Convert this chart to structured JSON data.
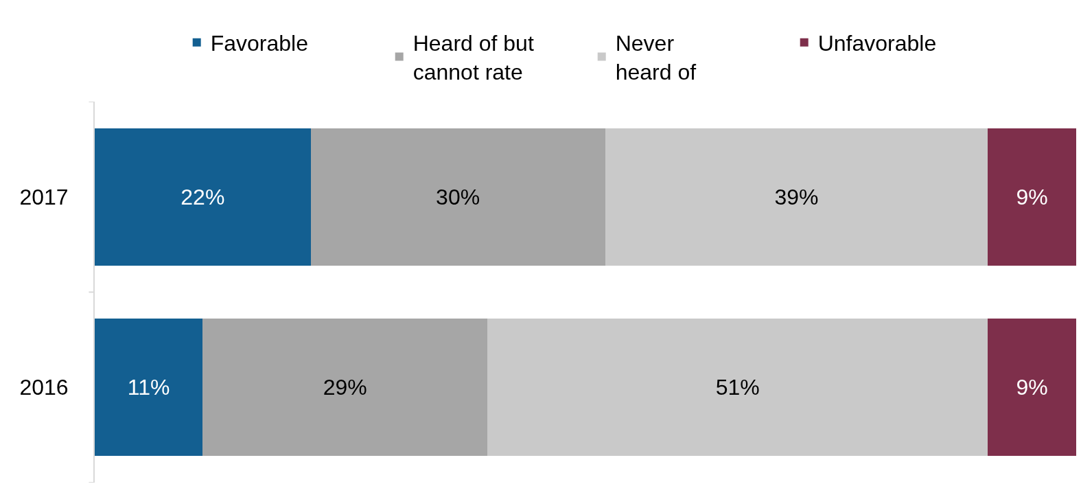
{
  "chart_data": {
    "type": "bar",
    "orientation": "horizontal",
    "stacked": true,
    "categories": [
      "2017",
      "2016"
    ],
    "series": [
      {
        "name": "Favorable",
        "color": "#135f91",
        "values": [
          22,
          11
        ],
        "value_labels": [
          "22%",
          "11%"
        ]
      },
      {
        "name": "Heard of but cannot rate",
        "color": "#a6a6a6",
        "values": [
          30,
          29
        ],
        "value_labels": [
          "30%",
          "29%"
        ]
      },
      {
        "name": "Never heard of",
        "color": "#c9c9c9",
        "values": [
          39,
          51
        ],
        "value_labels": [
          "39%",
          "51%"
        ]
      },
      {
        "name": "Unfavorable",
        "color": "#7e2f4b",
        "values": [
          9,
          9
        ],
        "value_labels": [
          "9%",
          "9%"
        ]
      }
    ],
    "xlim": [
      0,
      100
    ],
    "tick_labels": "y",
    "legend": "top"
  }
}
